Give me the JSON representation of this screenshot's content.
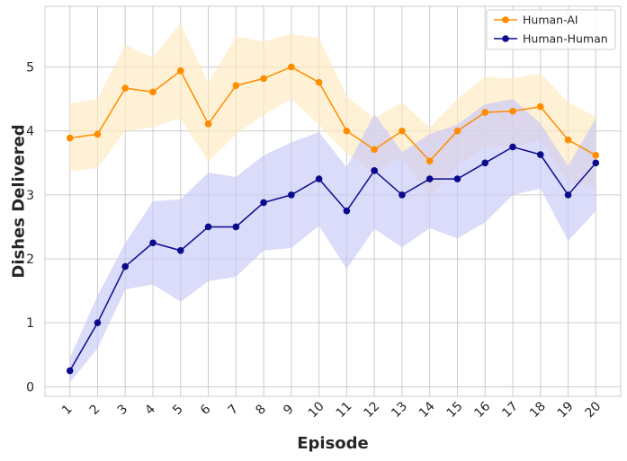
{
  "chart_data": {
    "type": "line",
    "xlabel": "Episode",
    "ylabel": "Dishes Delivered",
    "x": [
      1,
      2,
      3,
      4,
      5,
      6,
      7,
      8,
      9,
      10,
      11,
      12,
      13,
      14,
      15,
      16,
      17,
      18,
      19,
      20
    ],
    "xlim": [
      0.1,
      20.9
    ],
    "ylim": [
      -0.15,
      5.95
    ],
    "yticks": [
      0,
      1,
      2,
      3,
      4,
      5
    ],
    "grid": true,
    "legend_position": "top-right",
    "series": [
      {
        "name": "Human-AI",
        "color": "#ff8c00",
        "band_color": "#fde9bf",
        "values": [
          3.89,
          3.95,
          4.67,
          4.61,
          4.94,
          4.11,
          4.71,
          4.82,
          5.0,
          4.76,
          4.0,
          3.71,
          4.0,
          3.53,
          4.0,
          4.29,
          4.31,
          4.38,
          3.86,
          3.62
        ],
        "lower": [
          3.37,
          3.42,
          4.0,
          4.06,
          4.2,
          3.52,
          3.95,
          4.25,
          4.5,
          4.1,
          3.65,
          3.33,
          3.6,
          2.97,
          3.45,
          3.75,
          3.75,
          3.85,
          3.2,
          3.1
        ],
        "upper": [
          4.43,
          4.5,
          5.35,
          5.15,
          5.68,
          4.75,
          5.48,
          5.4,
          5.52,
          5.45,
          4.55,
          4.2,
          4.45,
          4.05,
          4.5,
          4.85,
          4.82,
          4.9,
          4.45,
          4.22
        ]
      },
      {
        "name": "Human-Human",
        "color": "#0a0a8c",
        "band_color": "#c8c8f8",
        "values": [
          0.25,
          1.0,
          1.88,
          2.25,
          2.13,
          2.5,
          2.5,
          2.88,
          3.0,
          3.25,
          2.75,
          3.38,
          3.0,
          3.25,
          3.25,
          3.5,
          3.75,
          3.63,
          3.0,
          3.5
        ],
        "lower": [
          0.07,
          0.6,
          1.52,
          1.6,
          1.33,
          1.65,
          1.72,
          2.13,
          2.17,
          2.52,
          1.84,
          2.47,
          2.18,
          2.48,
          2.32,
          2.57,
          3.0,
          3.1,
          2.28,
          2.75
        ],
        "upper": [
          0.45,
          1.42,
          2.25,
          2.9,
          2.93,
          3.35,
          3.28,
          3.62,
          3.82,
          3.98,
          3.43,
          4.27,
          3.67,
          3.95,
          4.1,
          4.42,
          4.5,
          4.12,
          3.45,
          4.2
        ]
      }
    ]
  }
}
